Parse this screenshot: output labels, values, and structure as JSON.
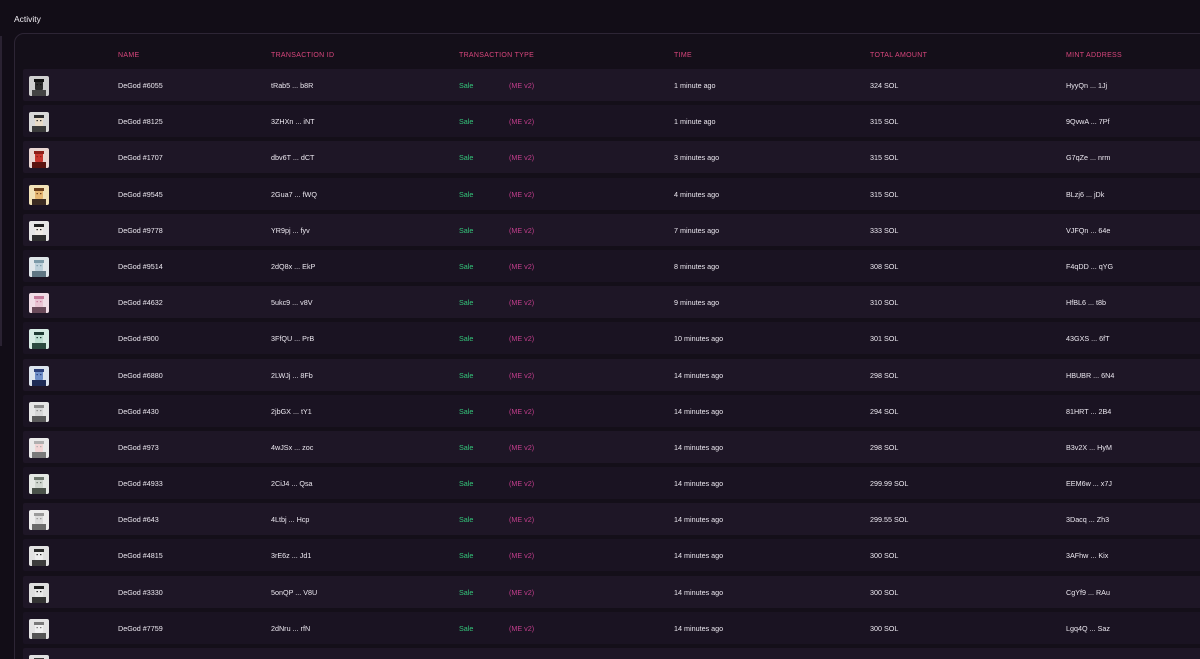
{
  "page": {
    "title": "Activity"
  },
  "columns": {
    "name": "NAME",
    "transaction_id": "TRANSACTION ID",
    "transaction_type": "TRANSACTION TYPE",
    "time": "TIME",
    "total_amount": "TOTAL AMOUNT",
    "mint_address": "MINT ADDRESS"
  },
  "colors": {
    "background": "#120d17",
    "row": "#1e1626",
    "header_text": "#d9467c",
    "sale": "#34c77b",
    "marketplace": "#c33e8c"
  },
  "rows": [
    {
      "name": "DeGod #6055",
      "tx": "tRab5 ... b8R",
      "type": "Sale",
      "source": "(ME v2)",
      "time": "1 minute ago",
      "amount": "324 SOL",
      "mint": "HyyQn ... 1Jj",
      "avatar": {
        "bg": "#cfcfcf",
        "skin": "#2b2b2b",
        "hair": "#111111",
        "shirt": "#444444"
      }
    },
    {
      "name": "DeGod #8125",
      "tx": "3ZHXn ... iNT",
      "type": "Sale",
      "source": "(ME v2)",
      "time": "1 minute ago",
      "amount": "315 SOL",
      "mint": "9QvwA ... 7Pf",
      "avatar": {
        "bg": "#d8d8d8",
        "skin": "#e9dcc8",
        "hair": "#2a2a2a",
        "shirt": "#3a3a3a"
      }
    },
    {
      "name": "DeGod #1707",
      "tx": "dbv6T ... dCT",
      "type": "Sale",
      "source": "(ME v2)",
      "time": "3 minutes ago",
      "amount": "315 SOL",
      "mint": "G7qZe ... nrm",
      "avatar": {
        "bg": "#e9d6d2",
        "skin": "#c7362f",
        "hair": "#8c1f1a",
        "shirt": "#5a1410"
      }
    },
    {
      "name": "DeGod #9545",
      "tx": "2Gua7 ... fWQ",
      "type": "Sale",
      "source": "(ME v2)",
      "time": "4 minutes ago",
      "amount": "315 SOL",
      "mint": "BLzj6 ... jDk",
      "avatar": {
        "bg": "#f2e2b8",
        "skin": "#e6b772",
        "hair": "#6b3e1c",
        "shirt": "#3b2b22"
      }
    },
    {
      "name": "DeGod #9778",
      "tx": "YR9pj ... fyv",
      "type": "Sale",
      "source": "(ME v2)",
      "time": "7 minutes ago",
      "amount": "333 SOL",
      "mint": "VJFQn ... 64e",
      "avatar": {
        "bg": "#e6e6e6",
        "skin": "#f0ece6",
        "hair": "#1e1e1e",
        "shirt": "#2e2e2e"
      }
    },
    {
      "name": "DeGod #9514",
      "tx": "2dQ8x ... EkP",
      "type": "Sale",
      "source": "(ME v2)",
      "time": "8 minutes ago",
      "amount": "308 SOL",
      "mint": "F4qDD ... qYG",
      "avatar": {
        "bg": "#dfe6ea",
        "skin": "#bcd0da",
        "hair": "#7c9aa8",
        "shirt": "#5f7683"
      }
    },
    {
      "name": "DeGod #4632",
      "tx": "5ukc9 ... v8V",
      "type": "Sale",
      "source": "(ME v2)",
      "time": "9 minutes ago",
      "amount": "310 SOL",
      "mint": "HfBL6 ... t8b",
      "avatar": {
        "bg": "#f0dde6",
        "skin": "#e9c4d3",
        "hair": "#c47a9a",
        "shirt": "#6a4a5a"
      }
    },
    {
      "name": "DeGod #900",
      "tx": "3FfQU ... PrB",
      "type": "Sale",
      "source": "(ME v2)",
      "time": "10 minutes ago",
      "amount": "301 SOL",
      "mint": "43GXS ... 6fT",
      "avatar": {
        "bg": "#d6ece4",
        "skin": "#bfe0d3",
        "hair": "#1f3b33",
        "shirt": "#2b4a40"
      }
    },
    {
      "name": "DeGod #6880",
      "tx": "2LWJj ... 8Fb",
      "type": "Sale",
      "source": "(ME v2)",
      "time": "14 minutes ago",
      "amount": "298 SOL",
      "mint": "HBUBR ... 6N4",
      "avatar": {
        "bg": "#dce4ee",
        "skin": "#6f8fc9",
        "hair": "#2b3f7a",
        "shirt": "#1e2b55"
      }
    },
    {
      "name": "DeGod #430",
      "tx": "2jbGX ... tY1",
      "type": "Sale",
      "source": "(ME v2)",
      "time": "14 minutes ago",
      "amount": "294 SOL",
      "mint": "81HRT ... 2B4",
      "avatar": {
        "bg": "#e6e6e6",
        "skin": "#d8d8d8",
        "hair": "#8a8a8a",
        "shirt": "#5a5a5a"
      }
    },
    {
      "name": "DeGod #973",
      "tx": "4wJSx ... zoc",
      "type": "Sale",
      "source": "(ME v2)",
      "time": "14 minutes ago",
      "amount": "298 SOL",
      "mint": "B3v2X ... HyM",
      "avatar": {
        "bg": "#eaeaea",
        "skin": "#f2d6d6",
        "hair": "#b0b0b0",
        "shirt": "#7a7a7a"
      }
    },
    {
      "name": "DeGod #4933",
      "tx": "2CiJ4 ... Qsa",
      "type": "Sale",
      "source": "(ME v2)",
      "time": "14 minutes ago",
      "amount": "299.99 SOL",
      "mint": "EEM6w ... x7J",
      "avatar": {
        "bg": "#e4e8e4",
        "skin": "#cfd6cf",
        "hair": "#6e786e",
        "shirt": "#4a524a"
      }
    },
    {
      "name": "DeGod #643",
      "tx": "4Ltbj ... Hcp",
      "type": "Sale",
      "source": "(ME v2)",
      "time": "14 minutes ago",
      "amount": "299.55 SOL",
      "mint": "3Dacq ... Zh3",
      "avatar": {
        "bg": "#ececec",
        "skin": "#dcdcdc",
        "hair": "#9a9a9a",
        "shirt": "#6a6a6a"
      }
    },
    {
      "name": "DeGod #4815",
      "tx": "3rE6z ... Jd1",
      "type": "Sale",
      "source": "(ME v2)",
      "time": "14 minutes ago",
      "amount": "300 SOL",
      "mint": "3AFhw ... Kix",
      "avatar": {
        "bg": "#e2e2e2",
        "skin": "#eeeeee",
        "hair": "#2a2a2a",
        "shirt": "#3c3c3c"
      }
    },
    {
      "name": "DeGod #3330",
      "tx": "5onQP ... V8U",
      "type": "Sale",
      "source": "(ME v2)",
      "time": "14 minutes ago",
      "amount": "300 SOL",
      "mint": "CgYf9 ... RAu",
      "avatar": {
        "bg": "#dedede",
        "skin": "#e8e8e8",
        "hair": "#1c1c1c",
        "shirt": "#333333"
      }
    },
    {
      "name": "DeGod #7759",
      "tx": "2dNru ... rfN",
      "type": "Sale",
      "source": "(ME v2)",
      "time": "14 minutes ago",
      "amount": "300 SOL",
      "mint": "Lgq4Q ... Saz",
      "avatar": {
        "bg": "#e4e4e4",
        "skin": "#f0f0f0",
        "hair": "#7a7a7a",
        "shirt": "#555555"
      }
    },
    {
      "name": "",
      "tx": "",
      "type": "",
      "source": "",
      "time": "",
      "amount": "",
      "mint": "",
      "avatar": {
        "bg": "#e0e0e0",
        "skin": "#ededed",
        "hair": "#3a3a3a",
        "shirt": "#444444"
      }
    }
  ]
}
